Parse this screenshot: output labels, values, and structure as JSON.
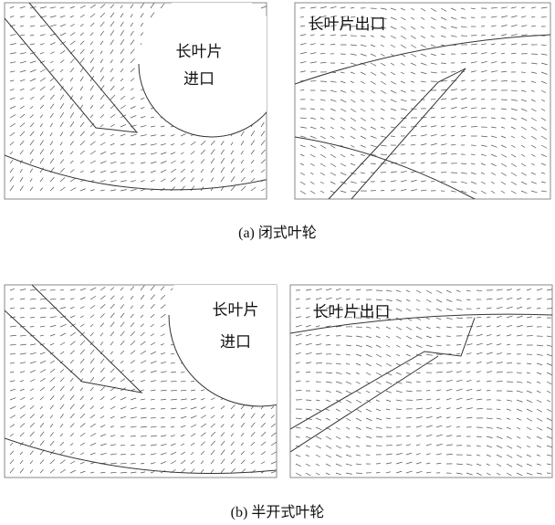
{
  "figures": [
    {
      "left_label": [
        "长叶片",
        "进口"
      ],
      "right_label": "长叶片出口",
      "caption": "(a) 闭式叶轮"
    },
    {
      "left_label": [
        "长叶片",
        "进口"
      ],
      "right_label": "长叶片出口",
      "caption": "(b) 半开式叶轮"
    }
  ]
}
